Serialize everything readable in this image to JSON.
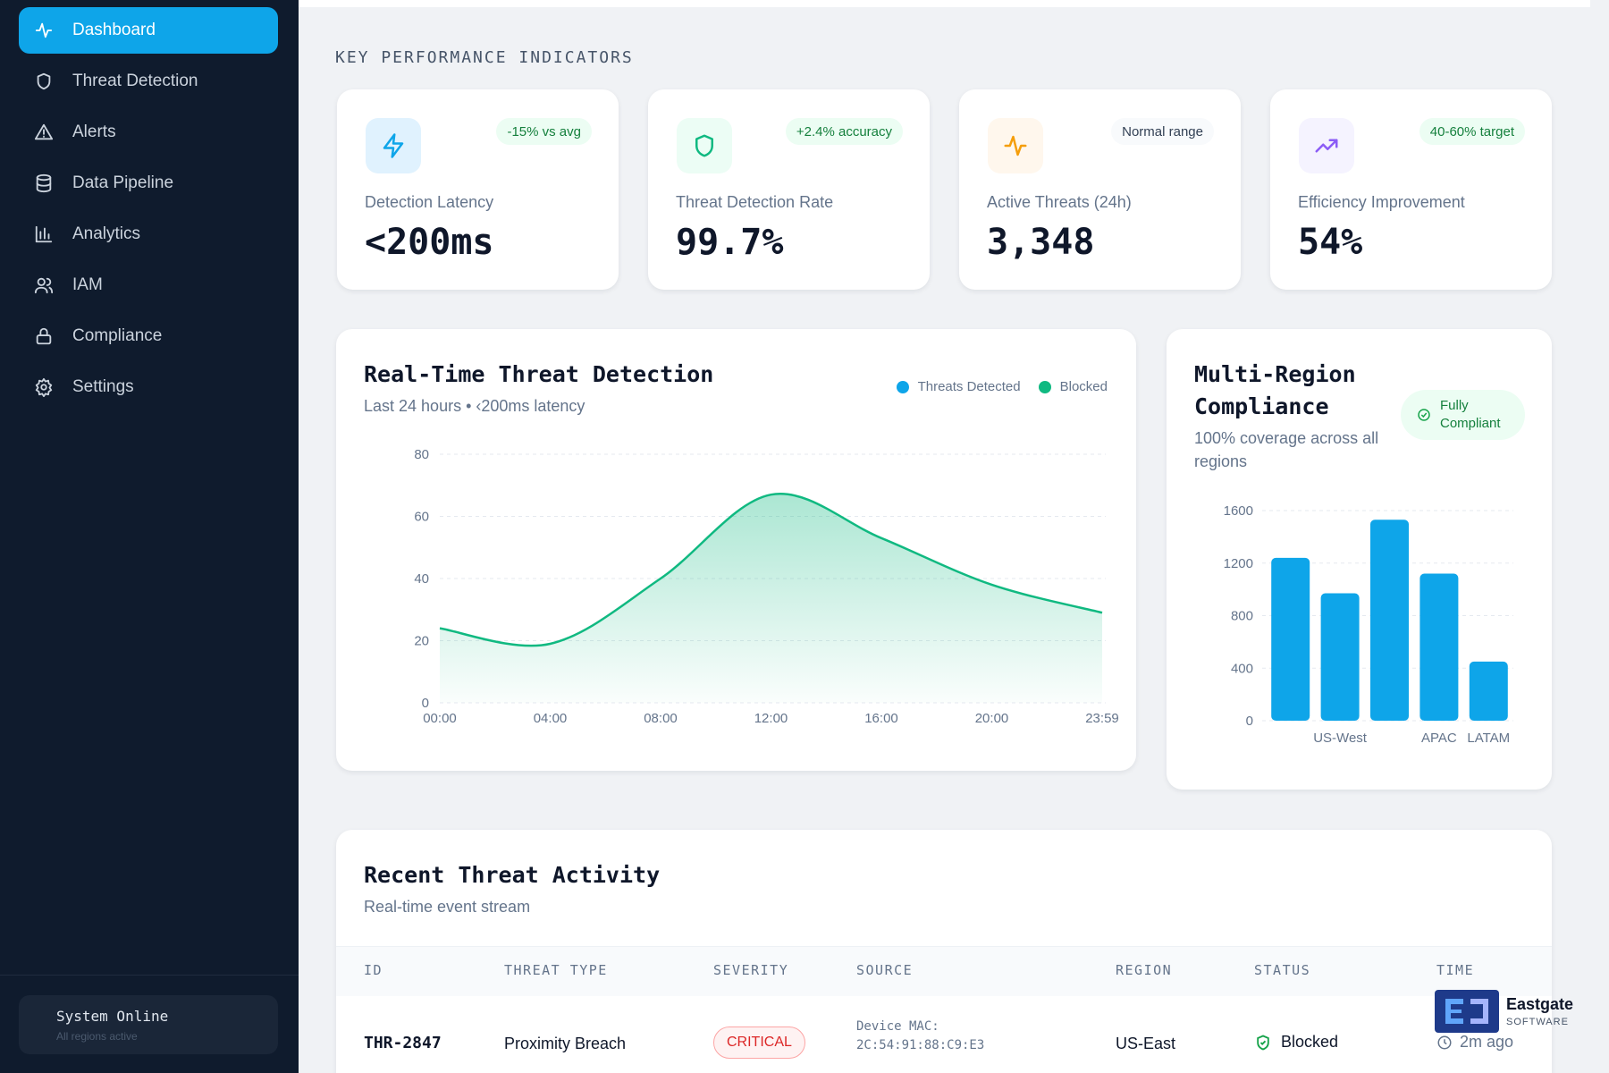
{
  "sidebar": {
    "items": [
      {
        "label": "Dashboard",
        "icon": "activity-icon",
        "active": true
      },
      {
        "label": "Threat Detection",
        "icon": "shield-icon"
      },
      {
        "label": "Alerts",
        "icon": "alert-triangle-icon"
      },
      {
        "label": "Data Pipeline",
        "icon": "database-icon"
      },
      {
        "label": "Analytics",
        "icon": "bar-chart-icon"
      },
      {
        "label": "IAM",
        "icon": "users-icon"
      },
      {
        "label": "Compliance",
        "icon": "lock-icon"
      },
      {
        "label": "Settings",
        "icon": "gear-icon"
      }
    ],
    "system_status": {
      "title": "System Online",
      "subtitle": "All regions active"
    }
  },
  "kpi": {
    "section_label": "KEY PERFORMANCE INDICATORS",
    "cards": [
      {
        "icon": "lightning-icon",
        "badge": "-15% vs avg",
        "label": "Detection Latency",
        "value": "<200ms",
        "accent": "#0ea5e9"
      },
      {
        "icon": "shield-icon",
        "badge": "+2.4% accuracy",
        "label": "Threat Detection Rate",
        "value": "99.7%",
        "accent": "#10b981"
      },
      {
        "icon": "activity-icon",
        "badge": "Normal range",
        "label": "Active Threats (24h)",
        "value": "3,348",
        "accent": "#f59e0b"
      },
      {
        "icon": "trending-up-icon",
        "badge": "40-60% target",
        "label": "Efficiency Improvement",
        "value": "54%",
        "accent": "#8b5cf6"
      }
    ]
  },
  "threat_chart": {
    "title": "Real-Time Threat Detection",
    "subtitle": "Last 24 hours • ‹200ms latency",
    "legend": [
      "Threats Detected",
      "Blocked"
    ],
    "legend_colors": [
      "#0ea5e9",
      "#10b981"
    ]
  },
  "compliance": {
    "title_line1": "Multi-Region",
    "title_line2": "Compliance",
    "subtitle_line1": "100% coverage across all",
    "subtitle_line2": "regions",
    "badge_line1": "Fully",
    "badge_line2": "Compliant"
  },
  "activity": {
    "title": "Recent Threat Activity",
    "subtitle": "Real-time event stream",
    "columns": [
      "ID",
      "THREAT TYPE",
      "SEVERITY",
      "SOURCE",
      "REGION",
      "STATUS",
      "TIME"
    ],
    "rows": [
      {
        "id": "THR-2847",
        "type": "Proximity Breach",
        "severity": "CRITICAL",
        "source_line1": "Device MAC:",
        "source_line2": "2C:54:91:88:C9:E3",
        "region": "US-East",
        "status": "Blocked",
        "time": "2m ago"
      }
    ]
  },
  "logo": {
    "name": "Eastgate",
    "sub": "SOFTWARE"
  },
  "chart_data": [
    {
      "type": "area",
      "title": "Real-Time Threat Detection",
      "x": [
        "00:00",
        "04:00",
        "08:00",
        "12:00",
        "16:00",
        "20:00",
        "23:59"
      ],
      "series": [
        {
          "name": "Blocked",
          "values": [
            24,
            19,
            40,
            67,
            53,
            38,
            29
          ]
        }
      ],
      "ylim": [
        0,
        80
      ],
      "yticks": [
        0,
        20,
        40,
        60,
        80
      ],
      "grid": true,
      "legend": "top-right"
    },
    {
      "type": "bar",
      "categories": [
        "",
        "US-West",
        "",
        "APAC",
        "LATAM"
      ],
      "values": [
        1240,
        970,
        1530,
        1120,
        450
      ],
      "ylim": [
        0,
        1600
      ],
      "yticks": [
        0,
        400,
        800,
        1200,
        1600
      ],
      "grid": true,
      "color": "#0ea5e9"
    }
  ]
}
